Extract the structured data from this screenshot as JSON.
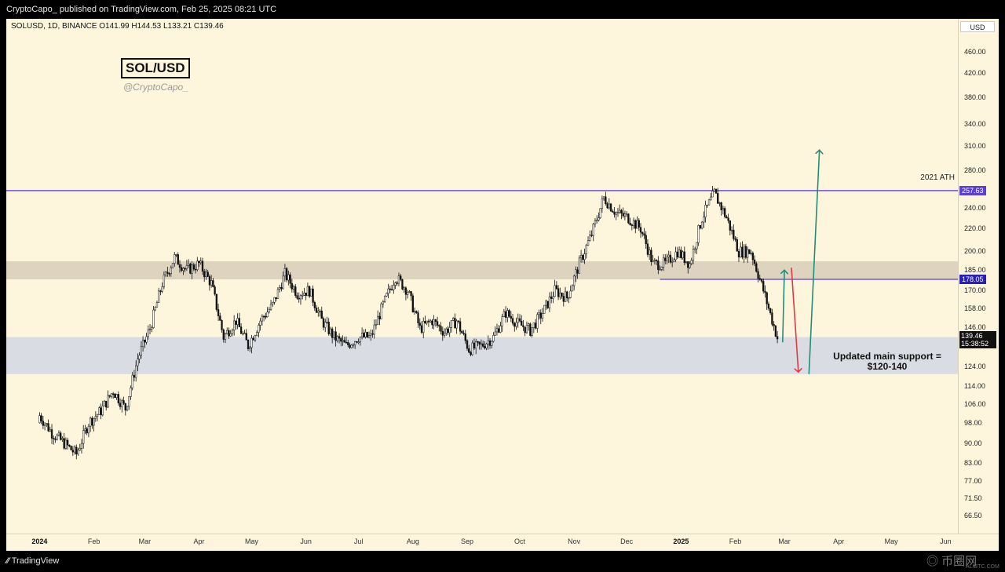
{
  "header": {
    "published_text": "CryptoCapo_ published on TradingView.com, Feb 25, 2025 08:21 UTC"
  },
  "legend": {
    "ohlc_text": "SOLUSD, 1D, BINANCE  O141.99  H144.53  L133.21  C139.46"
  },
  "overlay": {
    "title": "SOL/USD",
    "handle": "@CryptoCapo_",
    "support_line1": "Updated main support =",
    "support_line2": "$120-140"
  },
  "footer": {
    "brand": "TradingView",
    "watermark": "币圈网",
    "watermark_sub": "ALIBTC.COM"
  },
  "colors": {
    "chart_bg": "#fdf6dc",
    "resistance_band": "#ddd3bf",
    "support_band": "#d9dce2",
    "level_line": "#5b3fd6",
    "up_arrow": "#1f8f7a",
    "down_arrow": "#e0384a",
    "candle": "#111111"
  },
  "chart_data": {
    "type": "candlestick",
    "symbol": "SOLUSD",
    "timeframe": "1D",
    "exchange": "BINANCE",
    "last_bar": {
      "open": 141.99,
      "high": 144.53,
      "low": 133.21,
      "close": 139.46
    },
    "price_axis_unit": "USD",
    "price_ticks": [
      460,
      420,
      380,
      340,
      310,
      280,
      240,
      220,
      200,
      185,
      170,
      158,
      146,
      124,
      114,
      106,
      98,
      90,
      83,
      77,
      71.5,
      66.5
    ],
    "price_tick_labels": [
      "460.00",
      "420.00",
      "380.00",
      "340.00",
      "310.00",
      "280.00",
      "240.00",
      "220.00",
      "200.00",
      "185.00",
      "170.00",
      "158.00",
      "146.00",
      "124.00",
      "114.00",
      "106.00",
      "98.00",
      "90.00",
      "83.00",
      "77.00",
      "71.50",
      "66.50"
    ],
    "ylim": [
      63,
      520
    ],
    "time_ticks": [
      "2024",
      "Feb",
      "Mar",
      "Apr",
      "May",
      "Jun",
      "Jul",
      "Aug",
      "Sep",
      "Oct",
      "Nov",
      "Dec",
      "2025",
      "Feb",
      "Mar",
      "Apr",
      "May",
      "Jun"
    ],
    "bold_time_ticks": [
      "2024",
      "2025"
    ],
    "close_series": [
      {
        "date": "2024-01-01",
        "close": 101
      },
      {
        "date": "2024-01-08",
        "close": 94
      },
      {
        "date": "2024-01-15",
        "close": 90
      },
      {
        "date": "2024-01-22",
        "close": 86
      },
      {
        "date": "2024-01-29",
        "close": 98
      },
      {
        "date": "2024-02-05",
        "close": 103
      },
      {
        "date": "2024-02-12",
        "close": 112
      },
      {
        "date": "2024-02-19",
        "close": 104
      },
      {
        "date": "2024-02-26",
        "close": 128
      },
      {
        "date": "2024-03-04",
        "close": 145
      },
      {
        "date": "2024-03-11",
        "close": 175
      },
      {
        "date": "2024-03-18",
        "close": 195
      },
      {
        "date": "2024-03-25",
        "close": 185
      },
      {
        "date": "2024-04-01",
        "close": 190
      },
      {
        "date": "2024-04-08",
        "close": 175
      },
      {
        "date": "2024-04-15",
        "close": 140
      },
      {
        "date": "2024-04-22",
        "close": 150
      },
      {
        "date": "2024-04-29",
        "close": 135
      },
      {
        "date": "2024-05-06",
        "close": 150
      },
      {
        "date": "2024-05-13",
        "close": 160
      },
      {
        "date": "2024-05-20",
        "close": 182
      },
      {
        "date": "2024-05-27",
        "close": 168
      },
      {
        "date": "2024-06-03",
        "close": 170
      },
      {
        "date": "2024-06-10",
        "close": 150
      },
      {
        "date": "2024-06-17",
        "close": 140
      },
      {
        "date": "2024-06-24",
        "close": 135
      },
      {
        "date": "2024-07-01",
        "close": 140
      },
      {
        "date": "2024-07-08",
        "close": 140
      },
      {
        "date": "2024-07-15",
        "close": 160
      },
      {
        "date": "2024-07-22",
        "close": 180
      },
      {
        "date": "2024-07-29",
        "close": 170
      },
      {
        "date": "2024-08-05",
        "close": 145
      },
      {
        "date": "2024-08-12",
        "close": 150
      },
      {
        "date": "2024-08-19",
        "close": 143
      },
      {
        "date": "2024-08-26",
        "close": 150
      },
      {
        "date": "2024-09-02",
        "close": 133
      },
      {
        "date": "2024-09-09",
        "close": 135
      },
      {
        "date": "2024-09-16",
        "close": 140
      },
      {
        "date": "2024-09-23",
        "close": 155
      },
      {
        "date": "2024-09-30",
        "close": 148
      },
      {
        "date": "2024-10-07",
        "close": 144
      },
      {
        "date": "2024-10-14",
        "close": 155
      },
      {
        "date": "2024-10-21",
        "close": 170
      },
      {
        "date": "2024-10-28",
        "close": 165
      },
      {
        "date": "2024-11-04",
        "close": 190
      },
      {
        "date": "2024-11-11",
        "close": 215
      },
      {
        "date": "2024-11-18",
        "close": 250
      },
      {
        "date": "2024-11-25",
        "close": 235
      },
      {
        "date": "2024-12-02",
        "close": 230
      },
      {
        "date": "2024-12-09",
        "close": 220
      },
      {
        "date": "2024-12-16",
        "close": 190
      },
      {
        "date": "2024-12-23",
        "close": 190
      },
      {
        "date": "2024-12-30",
        "close": 200
      },
      {
        "date": "2025-01-06",
        "close": 190
      },
      {
        "date": "2025-01-13",
        "close": 230
      },
      {
        "date": "2025-01-20",
        "close": 255
      },
      {
        "date": "2025-01-27",
        "close": 230
      },
      {
        "date": "2025-02-03",
        "close": 200
      },
      {
        "date": "2025-02-10",
        "close": 200
      },
      {
        "date": "2025-02-17",
        "close": 170
      },
      {
        "date": "2025-02-25",
        "close": 139.46
      }
    ],
    "levels": [
      {
        "label": "2021 ATH",
        "price": 257.63,
        "badge": "257.63"
      },
      {
        "price": 178.05,
        "badge": "178.05"
      }
    ],
    "current_price": {
      "price": 139.46,
      "badge": "139.46",
      "countdown": "15:38:52"
    },
    "zones": [
      {
        "name": "resistance",
        "from": 178,
        "to": 192
      },
      {
        "name": "support",
        "from": 120,
        "to": 140
      }
    ]
  }
}
